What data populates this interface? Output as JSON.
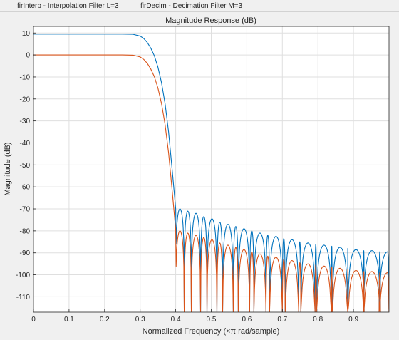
{
  "chart_data": {
    "type": "line",
    "title": "Magnitude Response (dB)",
    "xlabel": "Normalized Frequency (×π rad/sample)",
    "ylabel": "Magnitude (dB)",
    "xlim": [
      0,
      1
    ],
    "ylim": [
      -117,
      13
    ],
    "grid": true,
    "legend_position": "top-left",
    "x_ticks": [
      0,
      0.1,
      0.2,
      0.3,
      0.4,
      0.5,
      0.6,
      0.7,
      0.8,
      0.9
    ],
    "x_tick_labels": [
      "0",
      "0.1",
      "0.2",
      "0.3",
      "0.4",
      "0.5",
      "0.6",
      "0.7",
      "0.8",
      "0.9"
    ],
    "y_ticks": [
      10,
      0,
      -10,
      -20,
      -30,
      -40,
      -50,
      -60,
      -70,
      -80,
      -90,
      -100,
      -110
    ],
    "y_tick_labels": [
      "10",
      "0",
      "-10",
      "-20",
      "-30",
      "-40",
      "-50",
      "-60",
      "-70",
      "-80",
      "-90",
      "-100",
      "-110"
    ],
    "colors": {
      "firInterp": "#0072BD",
      "firDecim": "#D95319"
    },
    "series": [
      {
        "name": "firInterp - Interpolation Filter L=3",
        "color": "#0072BD",
        "passband_gain_db": 9.5,
        "x": [
          0,
          0.05,
          0.1,
          0.15,
          0.2,
          0.25,
          0.28,
          0.3,
          0.31,
          0.32,
          0.33,
          0.34,
          0.35,
          0.36,
          0.37,
          0.38,
          0.39,
          0.4
        ],
        "y": [
          9.5,
          9.5,
          9.5,
          9.5,
          9.5,
          9.5,
          9.4,
          8.6,
          7.5,
          5.7,
          3.1,
          -0.4,
          -5.5,
          -12.5,
          -22,
          -35,
          -52,
          -70
        ],
        "stopband_lobe_peaks": [
          [
            0.412,
            -70
          ],
          [
            0.434,
            -71
          ],
          [
            0.457,
            -72
          ],
          [
            0.479,
            -73.5
          ],
          [
            0.502,
            -74.5
          ],
          [
            0.524,
            -76
          ],
          [
            0.547,
            -77
          ],
          [
            0.569,
            -78
          ],
          [
            0.592,
            -79
          ],
          [
            0.614,
            -80
          ],
          [
            0.637,
            -81
          ],
          [
            0.659,
            -82
          ],
          [
            0.682,
            -82.5
          ],
          [
            0.704,
            -83.5
          ],
          [
            0.727,
            -84
          ],
          [
            0.749,
            -85
          ],
          [
            0.772,
            -85.5
          ],
          [
            0.794,
            -86
          ],
          [
            0.817,
            -86.5
          ],
          [
            0.839,
            -87
          ],
          [
            0.862,
            -87.5
          ],
          [
            0.884,
            -88
          ],
          [
            0.907,
            -88.5
          ],
          [
            0.929,
            -89
          ],
          [
            0.952,
            -89
          ],
          [
            0.974,
            -89.5
          ],
          [
            0.996,
            -89.5
          ]
        ]
      },
      {
        "name": "firDecim - Decimation Filter M=3",
        "color": "#D95319",
        "passband_gain_db": 0,
        "x": [
          0,
          0.05,
          0.1,
          0.15,
          0.2,
          0.25,
          0.28,
          0.3,
          0.31,
          0.32,
          0.33,
          0.34,
          0.35,
          0.36,
          0.37,
          0.38,
          0.39,
          0.4
        ],
        "y": [
          0,
          0,
          0,
          0,
          0,
          0,
          -0.1,
          -0.9,
          -2,
          -3.8,
          -6.4,
          -9.9,
          -15,
          -22,
          -31.5,
          -44.5,
          -61.5,
          -79.5
        ],
        "stopband_lobe_peaks": [
          [
            0.412,
            -80
          ],
          [
            0.434,
            -81
          ],
          [
            0.457,
            -82
          ],
          [
            0.479,
            -83
          ],
          [
            0.502,
            -84
          ],
          [
            0.524,
            -85.5
          ],
          [
            0.547,
            -86.5
          ],
          [
            0.569,
            -87.5
          ],
          [
            0.592,
            -88.5
          ],
          [
            0.614,
            -89.5
          ],
          [
            0.637,
            -90.5
          ],
          [
            0.659,
            -91.5
          ],
          [
            0.682,
            -92
          ],
          [
            0.704,
            -93
          ],
          [
            0.727,
            -93.5
          ],
          [
            0.749,
            -94.5
          ],
          [
            0.772,
            -95
          ],
          [
            0.794,
            -95.5
          ],
          [
            0.817,
            -96
          ],
          [
            0.839,
            -96.5
          ],
          [
            0.862,
            -97
          ],
          [
            0.884,
            -97.5
          ],
          [
            0.907,
            -98
          ],
          [
            0.929,
            -98.5
          ],
          [
            0.952,
            -98.5
          ],
          [
            0.974,
            -99
          ],
          [
            0.996,
            -99
          ]
        ]
      }
    ]
  }
}
